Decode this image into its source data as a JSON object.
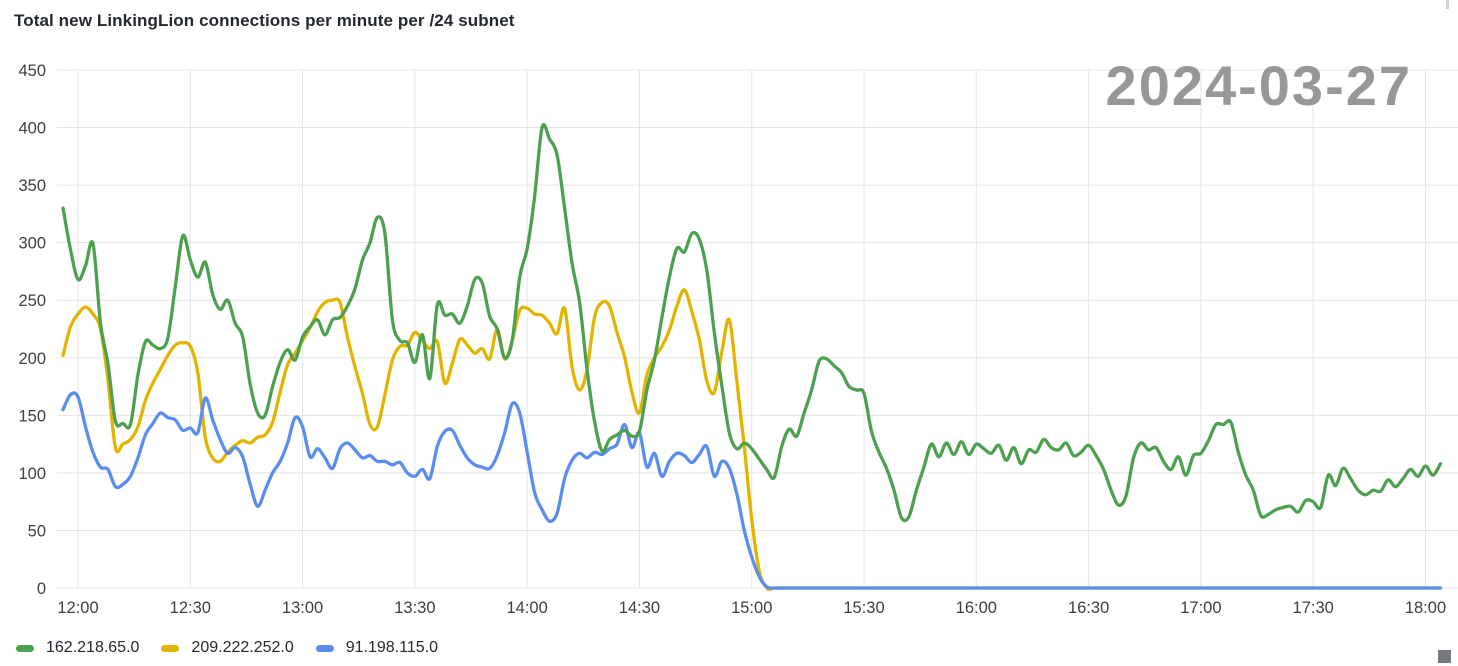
{
  "title": "Total new LinkingLion connections per minute per /24 subnet",
  "date_label": "2024-03-27",
  "colors": {
    "title_text": "#24292f",
    "date_text": "#979797",
    "axis_text": "#3c4043",
    "gridline": "#e4e4e4",
    "background": "#ffffff"
  },
  "chart_data": {
    "type": "line",
    "title": "Total new LinkingLion connections per minute per /24 subnet",
    "annotation": "2024-03-27",
    "xlabel": "",
    "ylabel": "",
    "ylim": [
      0,
      450
    ],
    "grid": true,
    "legend_position": "bottom-left",
    "y_ticks": [
      0,
      50,
      100,
      150,
      200,
      250,
      300,
      350,
      400,
      450
    ],
    "x_tick_labels": [
      "12:00",
      "12:30",
      "13:00",
      "13:30",
      "14:00",
      "14:30",
      "15:00",
      "15:30",
      "16:00",
      "16:30",
      "17:00",
      "17:30",
      "18:00"
    ],
    "x_start": "11:56",
    "x_step_minutes": 2,
    "series": [
      {
        "name": "162.218.65.0",
        "color": "#4da04f",
        "values": [
          330,
          294,
          268,
          280,
          299,
          230,
          195,
          145,
          143,
          142,
          185,
          214,
          211,
          208,
          217,
          262,
          306,
          285,
          270,
          283,
          255,
          242,
          250,
          230,
          218,
          177,
          152,
          150,
          175,
          196,
          207,
          198,
          218,
          227,
          233,
          220,
          233,
          235,
          245,
          260,
          285,
          300,
          322,
          308,
          233,
          215,
          213,
          196,
          220,
          182,
          246,
          237,
          238,
          230,
          245,
          268,
          265,
          236,
          225,
          200,
          215,
          270,
          295,
          340,
          400,
          390,
          376,
          330,
          282,
          248,
          190,
          145,
          119,
          129,
          133,
          137,
          132,
          136,
          172,
          198,
          235,
          270,
          295,
          292,
          308,
          303,
          276,
          222,
          176,
          135,
          121,
          126,
          121,
          112,
          103,
          96,
          123,
          138,
          132,
          152,
          172,
          197,
          199,
          193,
          187,
          175,
          172,
          169,
          136,
          118,
          104,
          85,
          61,
          62,
          85,
          105,
          125,
          114,
          126,
          116,
          127,
          116,
          125,
          121,
          117,
          124,
          111,
          122,
          108,
          120,
          118,
          129,
          122,
          120,
          126,
          115,
          118,
          124,
          115,
          103,
          85,
          72,
          80,
          113,
          126,
          120,
          122,
          110,
          103,
          114,
          98,
          115,
          117,
          128,
          142,
          142,
          144,
          118,
          98,
          85,
          63,
          64,
          68,
          70,
          71,
          66,
          76,
          75,
          70,
          98,
          89,
          104,
          95,
          85,
          81,
          85,
          84,
          94,
          88,
          95,
          103,
          97,
          106,
          98,
          108
        ]
      },
      {
        "name": "209.222.252.0",
        "color": "#e2b400",
        "values": [
          202,
          227,
          238,
          244,
          238,
          225,
          181,
          122,
          125,
          129,
          140,
          163,
          178,
          190,
          202,
          211,
          213,
          210,
          187,
          131,
          113,
          110,
          118,
          124,
          128,
          126,
          131,
          133,
          144,
          170,
          194,
          204,
          215,
          226,
          240,
          248,
          250,
          248,
          218,
          192,
          169,
          142,
          140,
          168,
          198,
          210,
          211,
          222,
          215,
          208,
          214,
          178,
          195,
          216,
          211,
          204,
          208,
          199,
          225,
          199,
          215,
          241,
          243,
          238,
          237,
          230,
          221,
          243,
          192,
          172,
          190,
          235,
          248,
          245,
          222,
          201,
          170,
          152,
          185,
          200,
          210,
          224,
          245,
          259,
          240,
          216,
          180,
          170,
          205,
          233,
          180,
          123,
          60,
          15,
          0,
          0,
          0,
          0,
          0,
          0,
          0,
          0,
          0,
          0,
          0,
          0,
          0,
          0,
          0,
          0,
          0,
          0,
          0,
          0,
          0,
          0,
          0,
          0,
          0,
          0,
          0,
          0,
          0,
          0,
          0,
          0,
          0,
          0,
          0,
          0,
          0,
          0,
          0,
          0,
          0,
          0,
          0,
          0,
          0,
          0,
          0,
          0,
          0,
          0,
          0,
          0,
          0,
          0,
          0,
          0,
          0,
          0,
          0,
          0,
          0,
          0,
          0,
          0,
          0,
          0,
          0,
          0,
          0,
          0,
          0,
          0,
          0,
          0,
          0,
          0,
          0,
          0,
          0,
          0,
          0,
          0,
          0,
          0,
          0,
          0,
          0,
          0,
          0,
          0,
          0
        ]
      },
      {
        "name": "91.198.115.0",
        "color": "#5b8def",
        "values": [
          155,
          168,
          166,
          140,
          118,
          105,
          103,
          88,
          90,
          97,
          113,
          133,
          143,
          152,
          148,
          146,
          137,
          139,
          135,
          165,
          146,
          129,
          117,
          122,
          114,
          90,
          71,
          85,
          100,
          110,
          126,
          148,
          140,
          114,
          121,
          113,
          104,
          121,
          126,
          120,
          113,
          115,
          110,
          110,
          107,
          109,
          100,
          97,
          103,
          95,
          123,
          136,
          137,
          124,
          113,
          107,
          105,
          104,
          115,
          135,
          160,
          152,
          118,
          83,
          68,
          58,
          65,
          95,
          111,
          117,
          113,
          118,
          116,
          121,
          125,
          142,
          122,
          135,
          105,
          117,
          97,
          110,
          117,
          115,
          109,
          116,
          123,
          97,
          110,
          104,
          82,
          50,
          27,
          10,
          1,
          0,
          0,
          0,
          0,
          0,
          0,
          0,
          0,
          0,
          0,
          0,
          0,
          0,
          0,
          0,
          0,
          0,
          0,
          0,
          0,
          0,
          0,
          0,
          0,
          0,
          0,
          0,
          0,
          0,
          0,
          0,
          0,
          0,
          0,
          0,
          0,
          0,
          0,
          0,
          0,
          0,
          0,
          0,
          0,
          0,
          0,
          0,
          0,
          0,
          0,
          0,
          0,
          0,
          0,
          0,
          0,
          0,
          0,
          0,
          0,
          0,
          0,
          0,
          0,
          0,
          0,
          0,
          0,
          0,
          0,
          0,
          0,
          0,
          0,
          0,
          0,
          0,
          0,
          0,
          0,
          0,
          0,
          0,
          0,
          0,
          0,
          0,
          0,
          0,
          0
        ]
      }
    ]
  }
}
